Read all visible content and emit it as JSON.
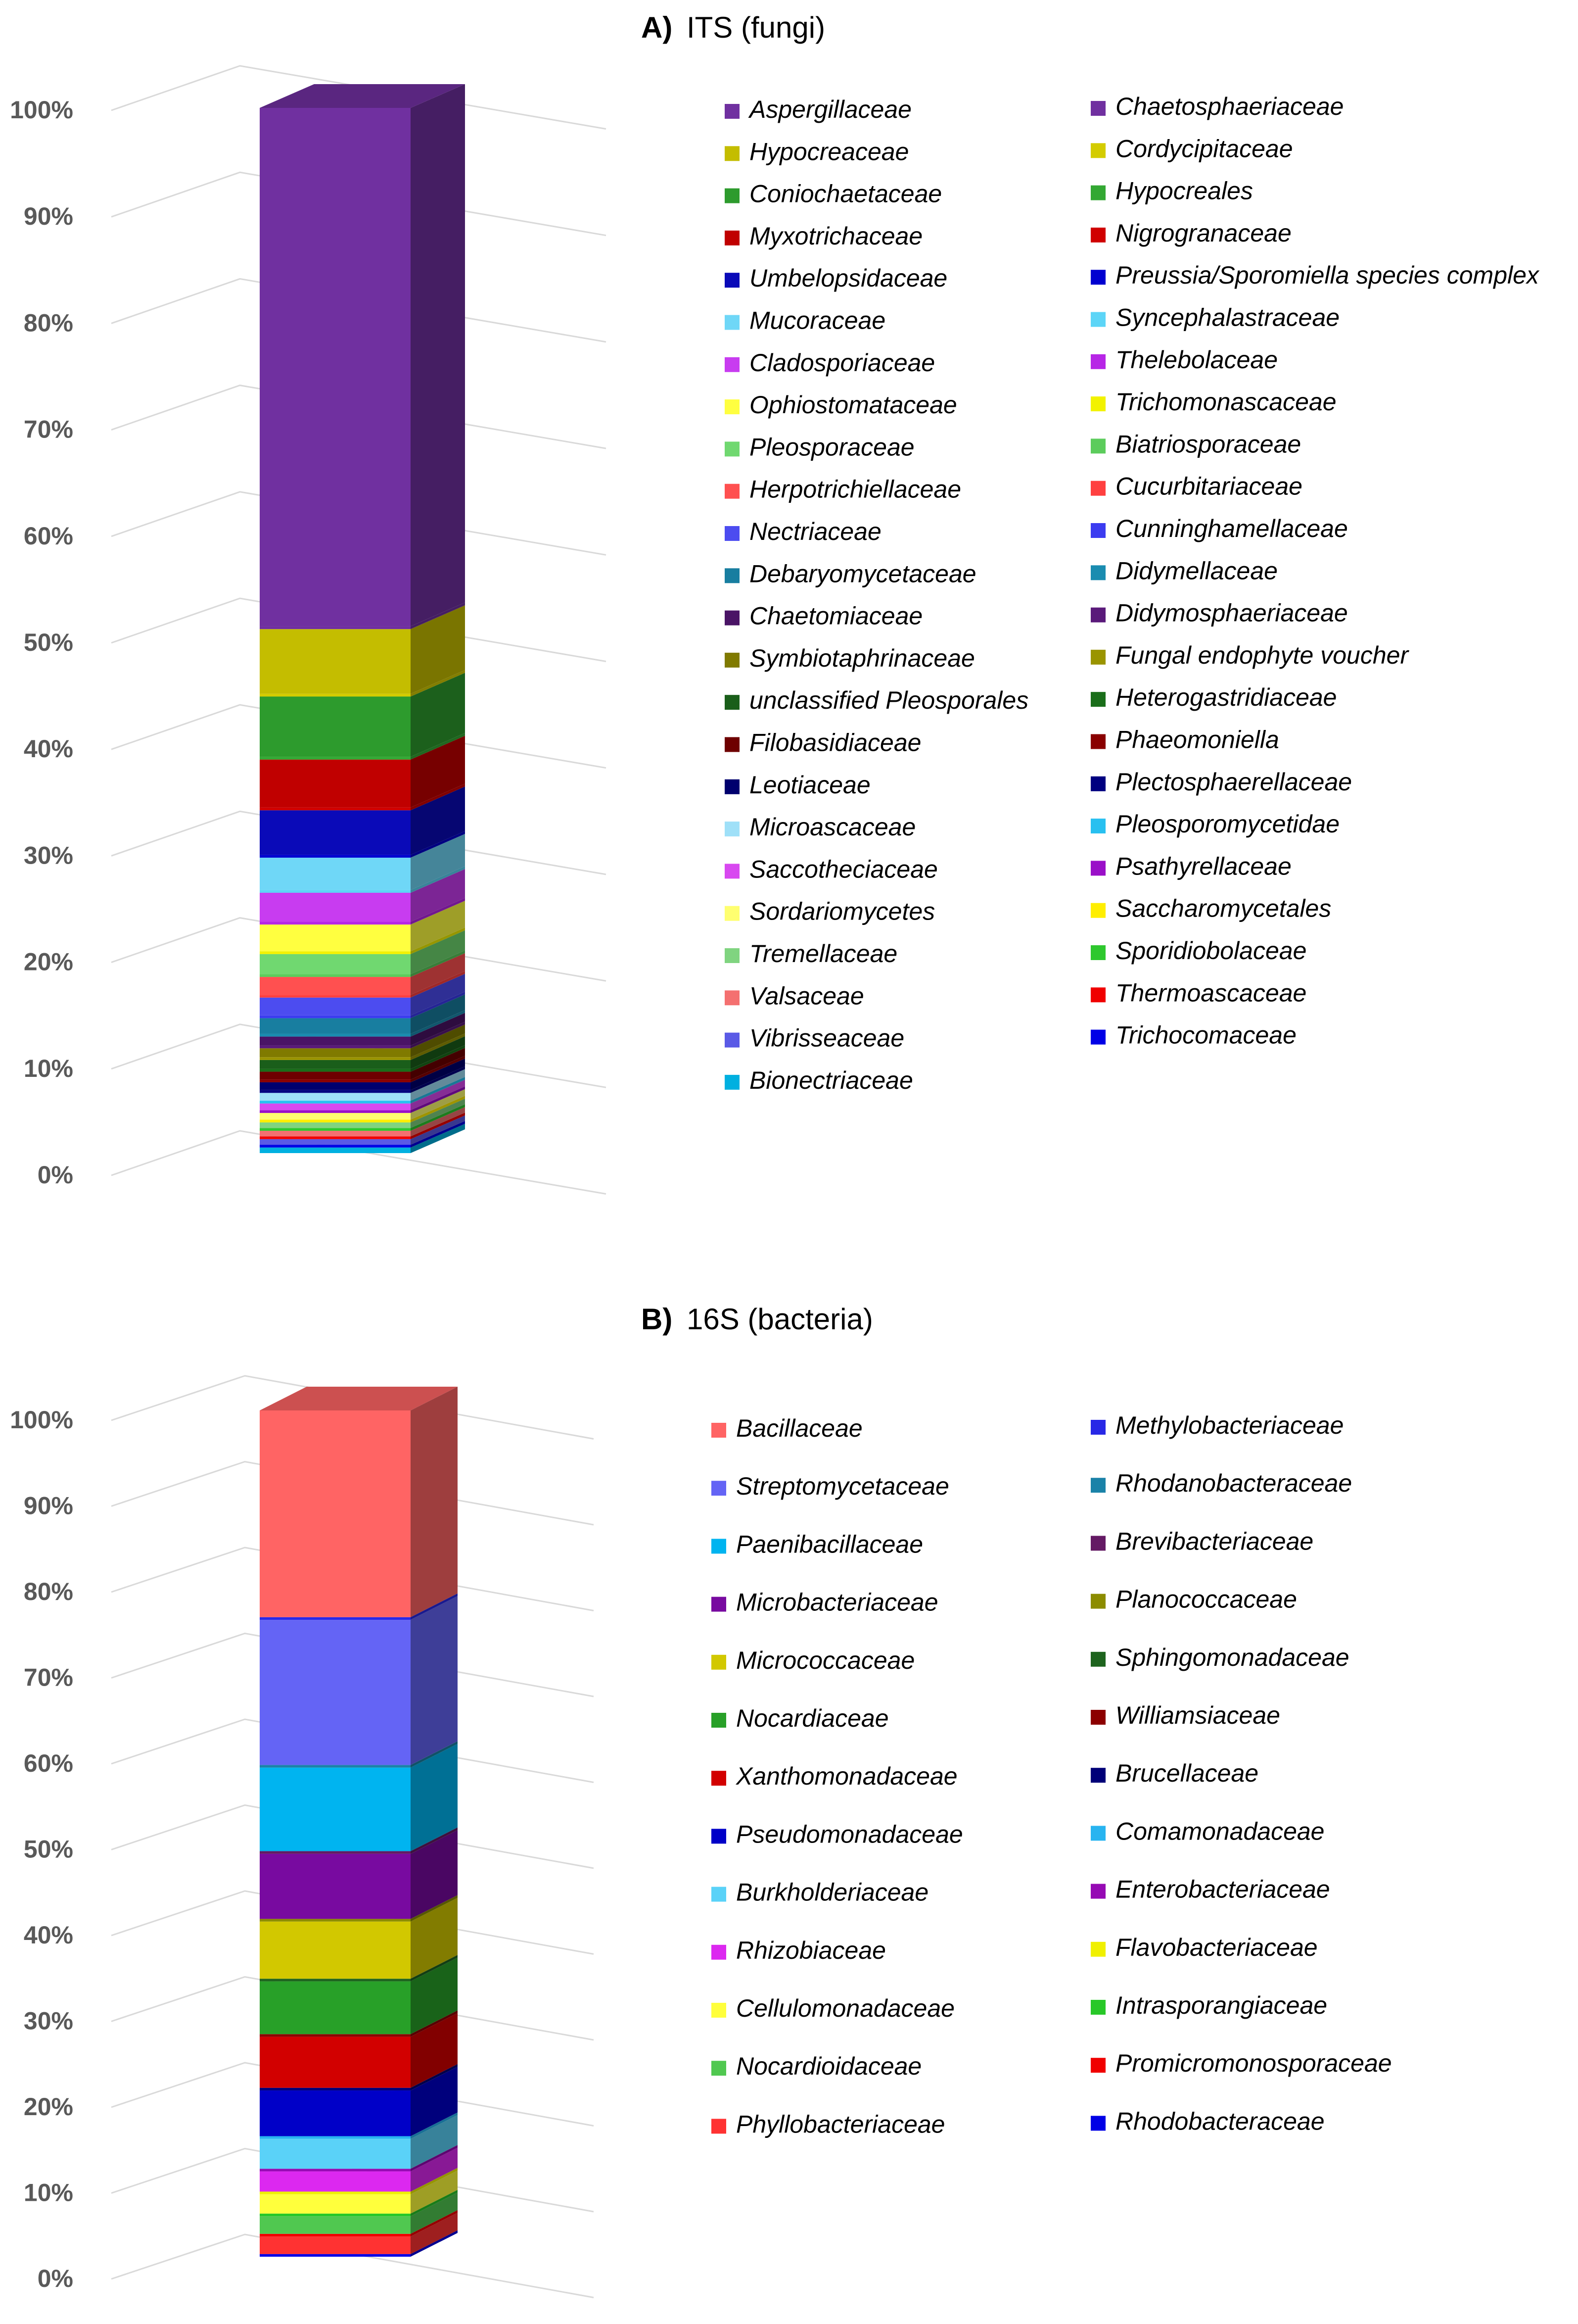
{
  "chart_data": [
    {
      "type": "bar",
      "subtype": "100% stacked 3D column",
      "title_letter": "A)",
      "title_text": "ITS (fungi)",
      "y_ticks": [
        "0%",
        "10%",
        "20%",
        "30%",
        "40%",
        "50%",
        "60%",
        "70%",
        "80%",
        "90%",
        "100%"
      ],
      "ylim": [
        0,
        100
      ],
      "legend_position": "right",
      "series": [
        {
          "name": "Aspergillaceae",
          "color": "#7030a0",
          "value": 46.5
        },
        {
          "name": "Chaetosphaeriaceae",
          "color": "#7030a0",
          "value": 0.25
        },
        {
          "name": "Hypocreaceae",
          "color": "#c4bd00",
          "value": 5.8
        },
        {
          "name": "Cordycipitaceae",
          "color": "#d4cc00",
          "value": 0.25
        },
        {
          "name": "Coniochaetaceae",
          "color": "#2d9b2d",
          "value": 5.4
        },
        {
          "name": "Hypocreales",
          "color": "#33a833",
          "value": 0.25
        },
        {
          "name": "Myxotrichaceae",
          "color": "#c00000",
          "value": 4.3
        },
        {
          "name": "Nigrogranaceae",
          "color": "#d00000",
          "value": 0.25
        },
        {
          "name": "Umbelopsidaceae",
          "color": "#0a0ab8",
          "value": 4.0
        },
        {
          "name": "Preussia/Sporomiella species complex",
          "color": "#0000d0",
          "value": 0.25
        },
        {
          "name": "Mucoraceae",
          "color": "#6fd7f7",
          "value": 2.9
        },
        {
          "name": "Syncephalastraceae",
          "color": "#5cd5f7",
          "value": 0.25
        },
        {
          "name": "Cladosporiaceae",
          "color": "#c83cf0",
          "value": 2.6
        },
        {
          "name": "Thelebolaceae",
          "color": "#b726e6",
          "value": 0.25
        },
        {
          "name": "Ophiostomataceae",
          "color": "#ffff40",
          "value": 2.4
        },
        {
          "name": "Trichomonascaceae",
          "color": "#f2f200",
          "value": 0.25
        },
        {
          "name": "Pleosporaceae",
          "color": "#70d870",
          "value": 1.8
        },
        {
          "name": "Biatriosporaceae",
          "color": "#5ccc5c",
          "value": 0.25
        },
        {
          "name": "Herpotrichiellaceae",
          "color": "#ff5050",
          "value": 1.6
        },
        {
          "name": "Cucurbitariaceae",
          "color": "#ff4040",
          "value": 0.25
        },
        {
          "name": "Nectriaceae",
          "color": "#4c4cf0",
          "value": 1.6
        },
        {
          "name": "Cunninghamellaceae",
          "color": "#3c3cf0",
          "value": 0.25
        },
        {
          "name": "Debaryomycetaceae",
          "color": "#187ea0",
          "value": 1.4
        },
        {
          "name": "Didymellaceae",
          "color": "#1a8cb0",
          "value": 0.25
        },
        {
          "name": "Chaetomiaceae",
          "color": "#4a1466",
          "value": 0.8
        },
        {
          "name": "Didymosphaeriaceae",
          "color": "#5a1a7a",
          "value": 0.25
        },
        {
          "name": "Symbiotaphrinaceae",
          "color": "#807a00",
          "value": 0.8
        },
        {
          "name": "Fungal endophyte voucher",
          "color": "#9a9400",
          "value": 0.25
        },
        {
          "name": "unclassified Pleosporales",
          "color": "#1a5e1a",
          "value": 0.8
        },
        {
          "name": "Heterogastridiaceae",
          "color": "#1a6e1a",
          "value": 0.25
        },
        {
          "name": "Filobasidiaceae",
          "color": "#6e0000",
          "value": 0.7
        },
        {
          "name": "Phaeomoniella",
          "color": "#8a0000",
          "value": 0.25
        },
        {
          "name": "Leotiaceae",
          "color": "#00006e",
          "value": 0.7
        },
        {
          "name": "Plectosphaerellaceae",
          "color": "#000080",
          "value": 0.25
        },
        {
          "name": "Microascaceae",
          "color": "#9fe0f8",
          "value": 0.7
        },
        {
          "name": "Pleosporomycetidae",
          "color": "#28c0f0",
          "value": 0.25
        },
        {
          "name": "Saccotheciaceae",
          "color": "#d848f0",
          "value": 0.6
        },
        {
          "name": "Psathyrellaceae",
          "color": "#9a10c8",
          "value": 0.25
        },
        {
          "name": "Sordariomycetes",
          "color": "#ffff70",
          "value": 0.6
        },
        {
          "name": "Saccharomycetales",
          "color": "#ffee00",
          "value": 0.25
        },
        {
          "name": "Tremellaceae",
          "color": "#80d480",
          "value": 0.5
        },
        {
          "name": "Sporidiobolaceae",
          "color": "#2ec82e",
          "value": 0.25
        },
        {
          "name": "Valsaceae",
          "color": "#f47070",
          "value": 0.5
        },
        {
          "name": "Thermoascaceae",
          "color": "#f00000",
          "value": 0.25
        },
        {
          "name": "Vibrisseaceae",
          "color": "#5a5ae6",
          "value": 0.5
        },
        {
          "name": "Trichocomaceae",
          "color": "#0000e6",
          "value": 0.25
        },
        {
          "name": "Bionectriaceae",
          "color": "#00b0e0",
          "value": 0.5
        }
      ]
    },
    {
      "type": "bar",
      "subtype": "100% stacked 3D column",
      "title_letter": "B)",
      "title_text": "16S (bacteria)",
      "y_ticks": [
        "0%",
        "10%",
        "20%",
        "30%",
        "40%",
        "50%",
        "60%",
        "70%",
        "80%",
        "90%",
        "100%"
      ],
      "ylim": [
        0,
        100
      ],
      "legend_position": "right",
      "series": [
        {
          "name": "Bacillaceae",
          "color": "#ff6464",
          "value": 23.5
        },
        {
          "name": "Methylobacteriaceae",
          "color": "#2828e6",
          "value": 0.3
        },
        {
          "name": "Streptomycetaceae",
          "color": "#6464f5",
          "value": 16.5
        },
        {
          "name": "Rhodanobacteraceae",
          "color": "#1a82a8",
          "value": 0.3
        },
        {
          "name": "Paenibacillaceae",
          "color": "#00b4f0",
          "value": 9.5
        },
        {
          "name": "Brevibacteriaceae",
          "color": "#641a64",
          "value": 0.3
        },
        {
          "name": "Microbacteriaceae",
          "color": "#780aa0",
          "value": 7.4
        },
        {
          "name": "Planococcaceae",
          "color": "#8c8c00",
          "value": 0.3
        },
        {
          "name": "Micrococcaceae",
          "color": "#d2c800",
          "value": 6.5
        },
        {
          "name": "Sphingomonadaceae",
          "color": "#1e641e",
          "value": 0.3
        },
        {
          "name": "Nocardiaceae",
          "color": "#28a028",
          "value": 6.0
        },
        {
          "name": "Williamsiaceae",
          "color": "#8c0000",
          "value": 0.3
        },
        {
          "name": "Xanthomonadaceae",
          "color": "#d20000",
          "value": 5.8
        },
        {
          "name": "Brucellaceae",
          "color": "#000078",
          "value": 0.3
        },
        {
          "name": "Pseudomonadaceae",
          "color": "#0000c8",
          "value": 5.2
        },
        {
          "name": "Comamonadaceae",
          "color": "#28b4f0",
          "value": 0.3
        },
        {
          "name": "Burkholderiaceae",
          "color": "#5ad2f8",
          "value": 3.4
        },
        {
          "name": "Enterobacteriaceae",
          "color": "#960ab4",
          "value": 0.3
        },
        {
          "name": "Rhizobiaceae",
          "color": "#dc28f0",
          "value": 2.3
        },
        {
          "name": "Flavobacteriaceae",
          "color": "#f0f000",
          "value": 0.3
        },
        {
          "name": "Cellulomonadaceae",
          "color": "#ffff3c",
          "value": 2.2
        },
        {
          "name": "Intrasporangiaceae",
          "color": "#28c828",
          "value": 0.3
        },
        {
          "name": "Nocardioidaceae",
          "color": "#50c850",
          "value": 2.0
        },
        {
          "name": "Promicromonosporaceae",
          "color": "#f00000",
          "value": 0.3
        },
        {
          "name": "Phyllobacteriaceae",
          "color": "#ff3232",
          "value": 2.0
        },
        {
          "name": "Rhodobacteraceae",
          "color": "#0000e6",
          "value": 0.3
        }
      ]
    }
  ]
}
